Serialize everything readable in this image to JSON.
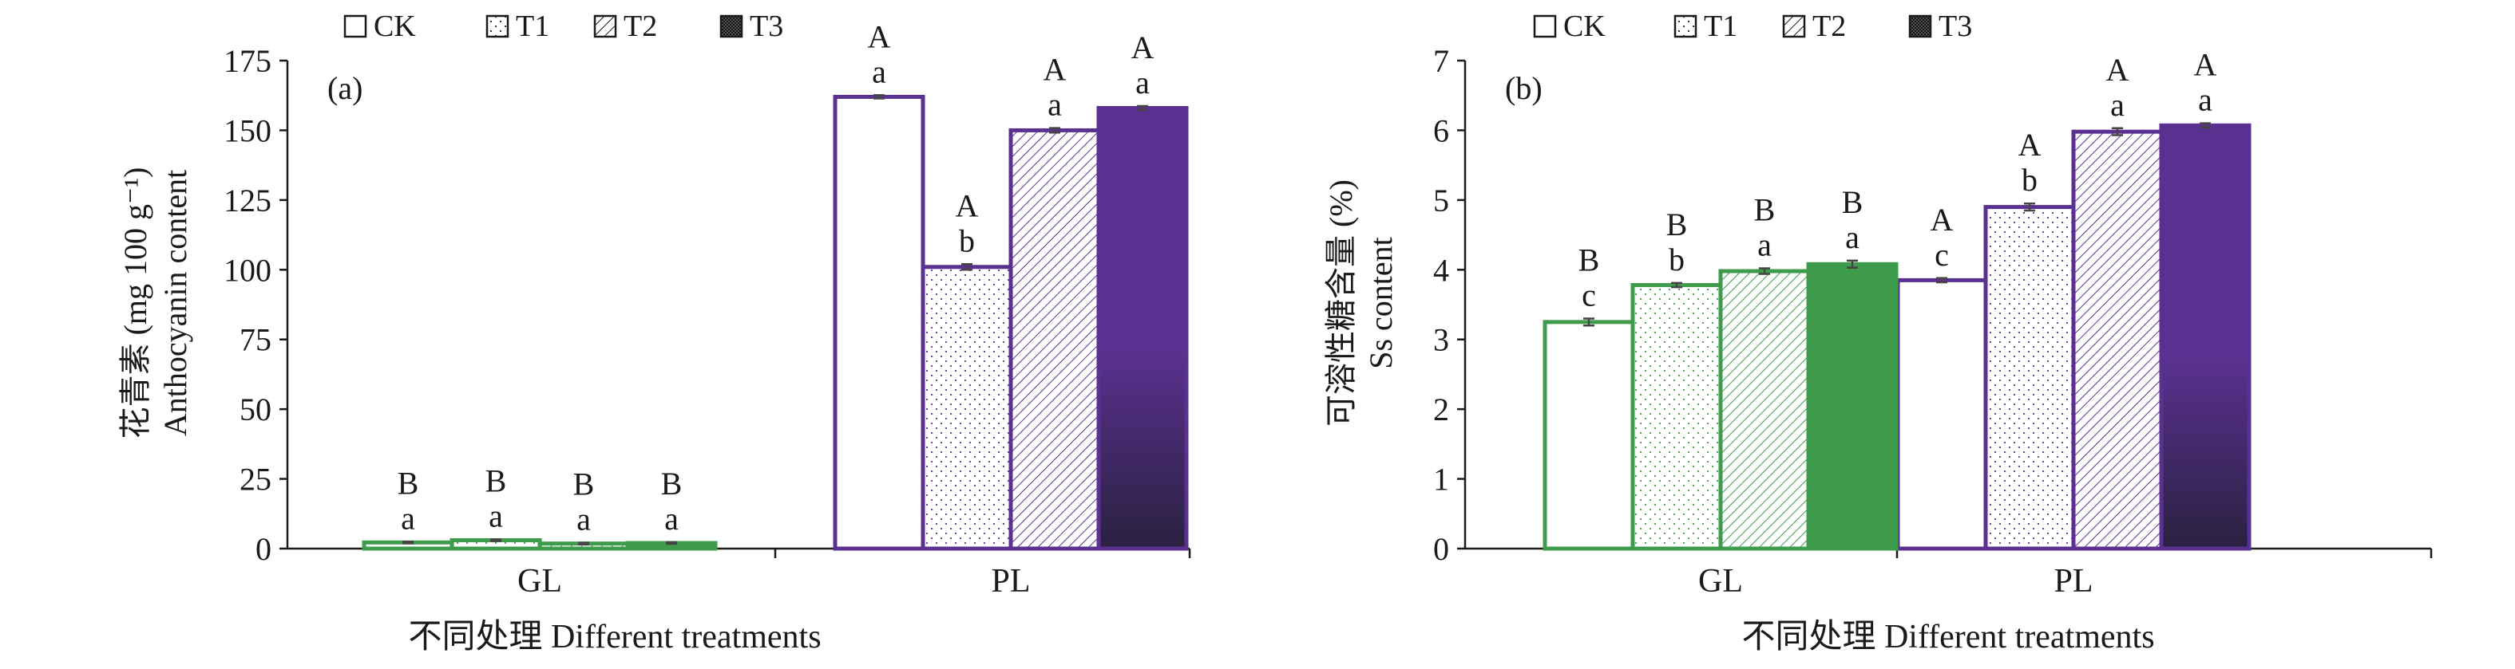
{
  "colors": {
    "green": "#3f9b4c",
    "purple": "#5a3190",
    "purple_dark": "#2a2140",
    "axis": "#1a1a1a",
    "errorbar": "#444444"
  },
  "legend": {
    "items": [
      {
        "label": "CK",
        "pattern": "empty"
      },
      {
        "label": "T1",
        "pattern": "dots"
      },
      {
        "label": "T2",
        "pattern": "hatch"
      },
      {
        "label": "T3",
        "pattern": "solid"
      }
    ]
  },
  "chart_data": [
    {
      "type": "bar",
      "panel_label": "(a)",
      "ylabel_cn": "花青素 (mg 100 g⁻¹)",
      "ylabel_en": "Anthocyanin content",
      "xlabel": "不同处理 Different treatments",
      "categories": [
        "GL",
        "PL"
      ],
      "ylim": [
        0,
        175
      ],
      "yticks": [
        "0",
        "25",
        "50",
        "75",
        "100",
        "125",
        "150",
        "175"
      ],
      "series": [
        {
          "name": "CK",
          "values": [
            2.2,
            162
          ],
          "errors": [
            0.3,
            0.6
          ]
        },
        {
          "name": "T1",
          "values": [
            3.0,
            101
          ],
          "errors": [
            0.3,
            1.0
          ]
        },
        {
          "name": "T2",
          "values": [
            1.8,
            150
          ],
          "errors": [
            0.3,
            0.8
          ]
        },
        {
          "name": "T3",
          "values": [
            2.0,
            158
          ],
          "errors": [
            0.3,
            0.7
          ]
        }
      ],
      "annotations_upper": [
        [
          "B",
          "A"
        ],
        [
          "B",
          "A"
        ],
        [
          "B",
          "A"
        ],
        [
          "B",
          "A"
        ]
      ],
      "annotations_lower": [
        [
          "a",
          "a"
        ],
        [
          "a",
          "b"
        ],
        [
          "a",
          "a"
        ],
        [
          "a",
          "a"
        ]
      ]
    },
    {
      "type": "bar",
      "panel_label": "(b)",
      "ylabel_cn": "可溶性糖含量 (%)",
      "ylabel_en": "Ss content",
      "xlabel": "不同处理 Different treatments",
      "categories": [
        "GL",
        "PL"
      ],
      "ylim": [
        0,
        7
      ],
      "yticks": [
        "0",
        "1",
        "2",
        "3",
        "4",
        "5",
        "6",
        "7"
      ],
      "series": [
        {
          "name": "CK",
          "values": [
            3.25,
            3.85
          ],
          "errors": [
            0.05,
            0.03
          ]
        },
        {
          "name": "T1",
          "values": [
            3.78,
            4.9
          ],
          "errors": [
            0.03,
            0.05
          ]
        },
        {
          "name": "T2",
          "values": [
            3.98,
            5.98
          ],
          "errors": [
            0.04,
            0.05
          ]
        },
        {
          "name": "T3",
          "values": [
            4.08,
            6.07
          ],
          "errors": [
            0.05,
            0.03
          ]
        }
      ],
      "annotations_upper": [
        [
          "B",
          "A"
        ],
        [
          "B",
          "A"
        ],
        [
          "B",
          "A"
        ],
        [
          "B",
          "A"
        ]
      ],
      "annotations_lower": [
        [
          "c",
          "c"
        ],
        [
          "b",
          "b"
        ],
        [
          "a",
          "a"
        ],
        [
          "a",
          "a"
        ]
      ]
    }
  ]
}
